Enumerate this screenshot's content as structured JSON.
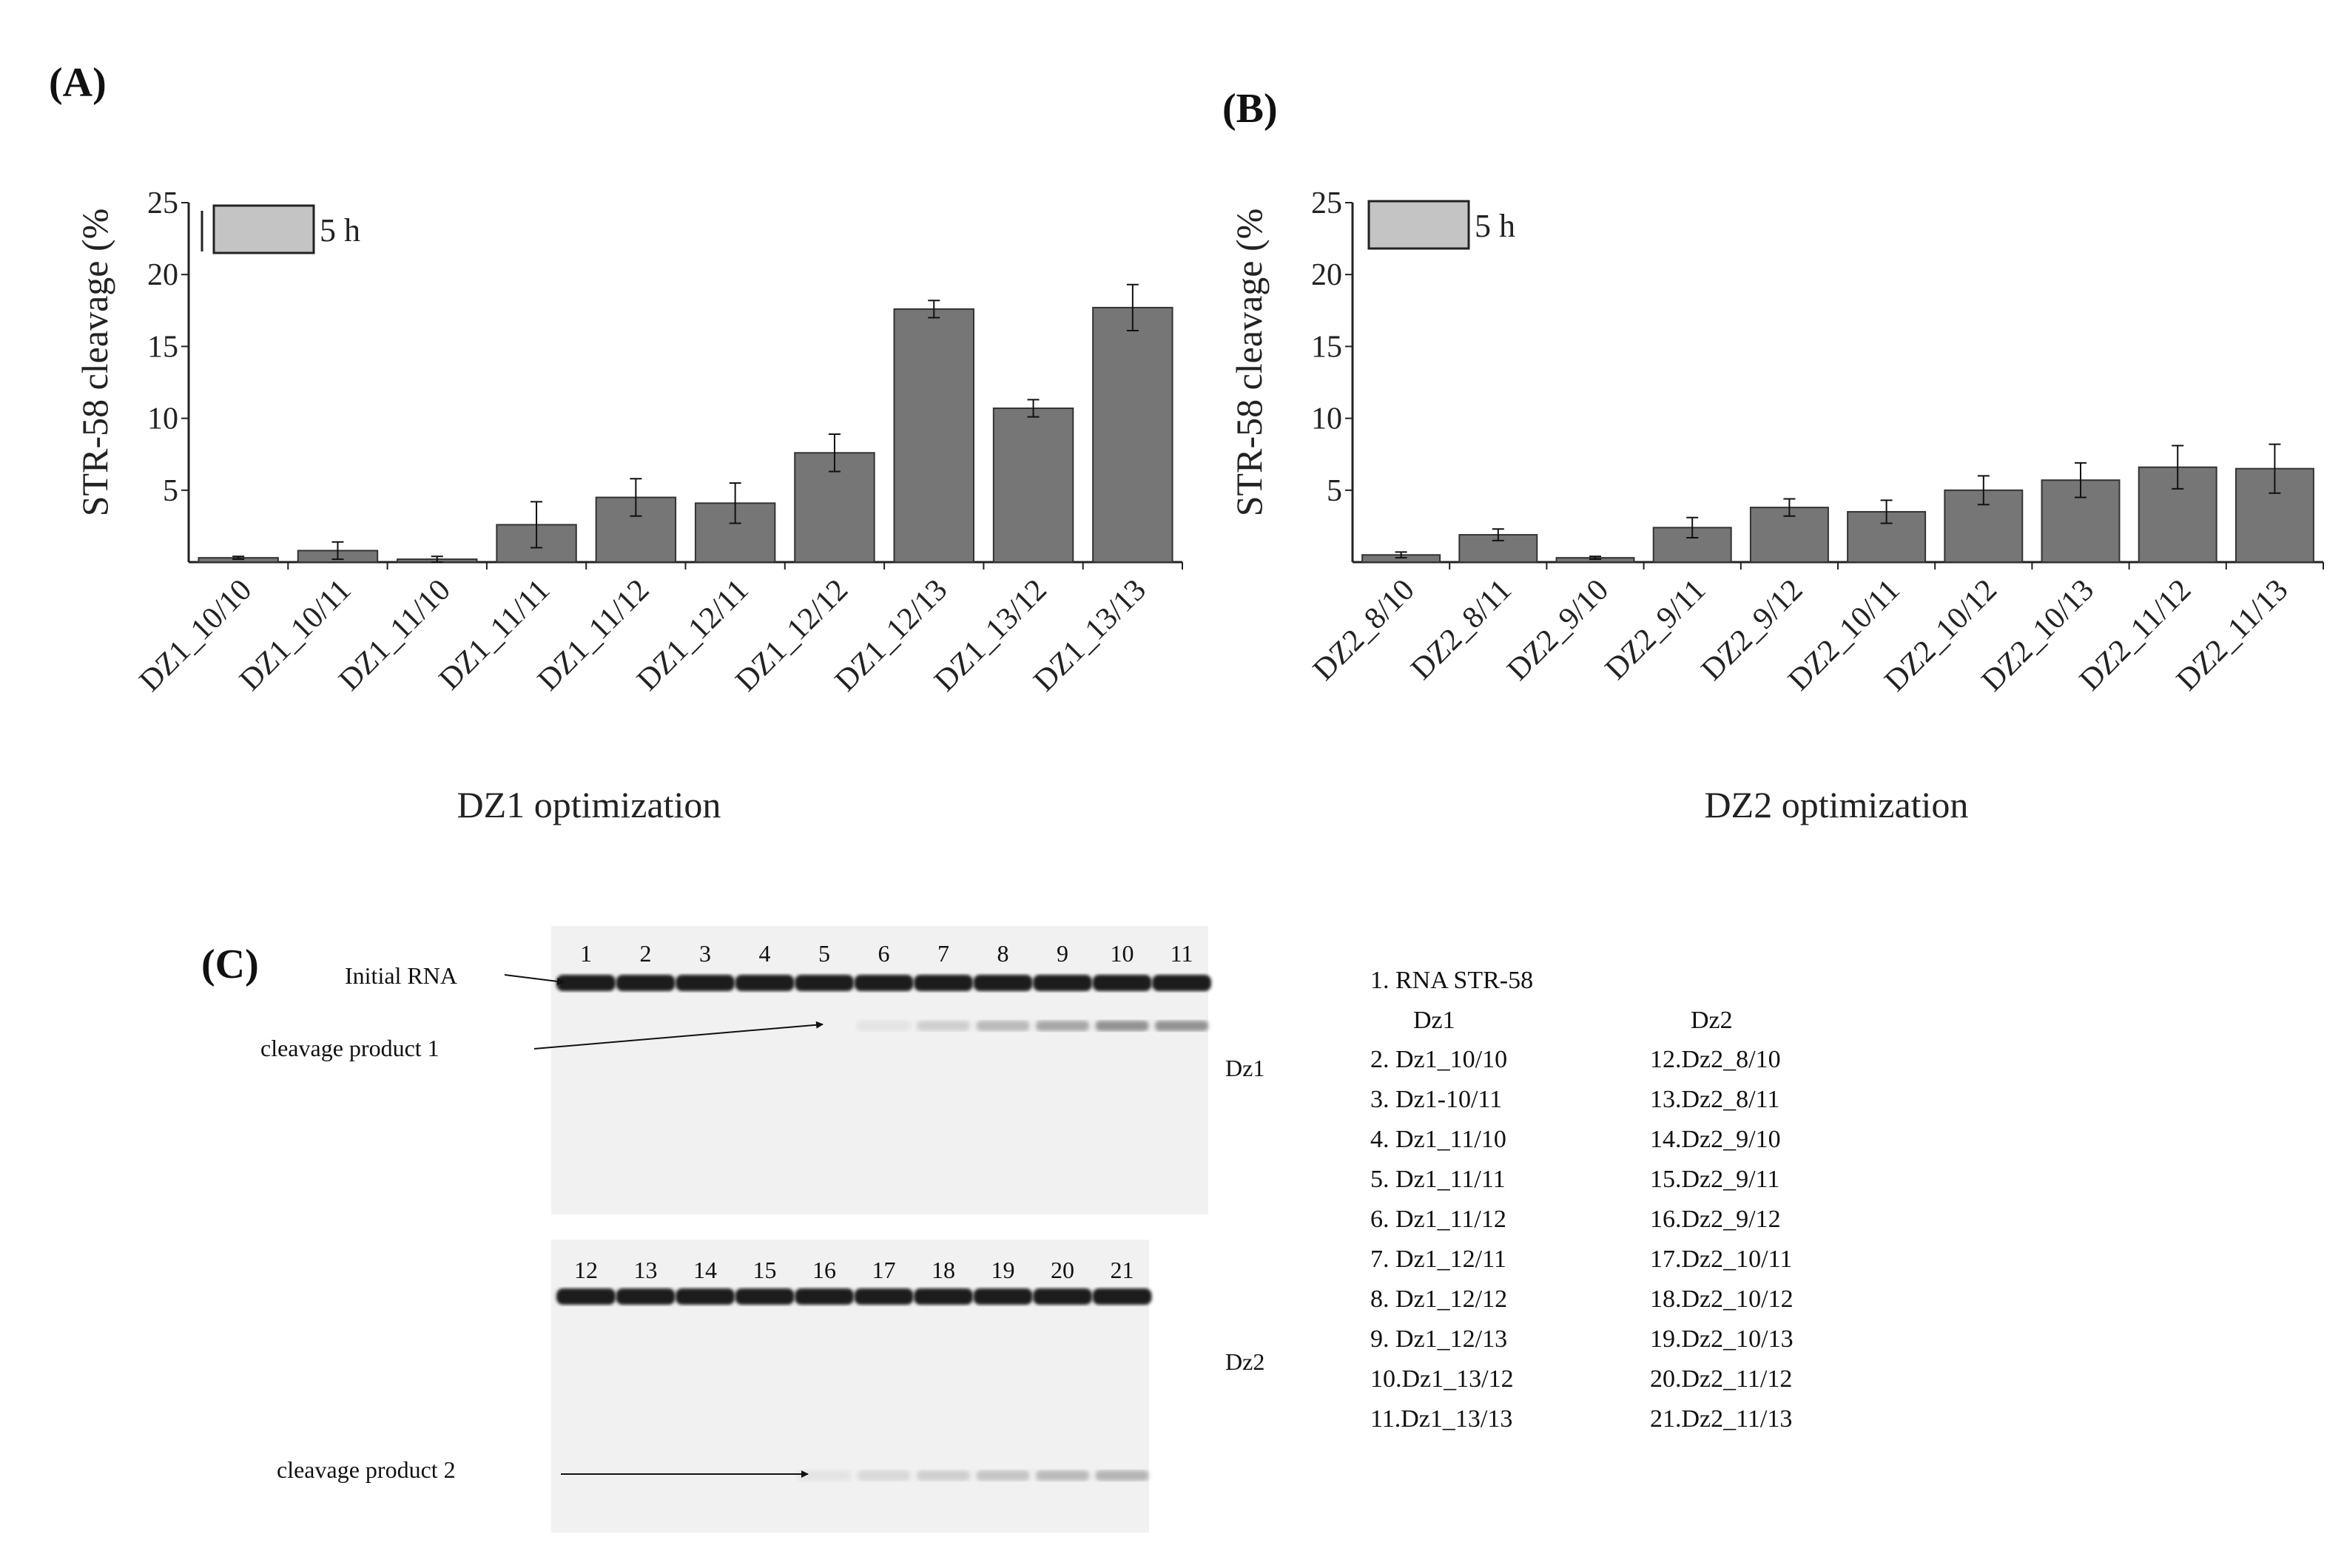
{
  "chart_data": [
    {
      "panel": "(A)",
      "type": "bar",
      "ylabel": "STR-58 cleavage (%",
      "xlabel": "DZ1 optimization",
      "ylim": [
        0,
        25
      ],
      "yticks": [
        "5",
        "10",
        "15",
        "20",
        "25"
      ],
      "legend": {
        "label": "5 h",
        "color": "#c4c4c4"
      },
      "bar_color": "#767676",
      "categories": [
        "DZ1_10/10",
        "DZ1_10/11",
        "DZ1_11/10",
        "DZ1_11/11",
        "DZ1_11/12",
        "DZ1_12/11",
        "DZ1_12/12",
        "DZ1_12/13",
        "DZ1_13/12",
        "DZ1_13/13"
      ],
      "values": [
        0.3,
        0.8,
        0.2,
        2.6,
        4.5,
        4.1,
        7.6,
        17.6,
        10.7,
        17.7
      ],
      "errors": [
        0.1,
        0.6,
        0.2,
        1.6,
        1.3,
        1.4,
        1.3,
        0.6,
        0.6,
        1.6
      ]
    },
    {
      "panel": "(B)",
      "type": "bar",
      "ylabel": "STR-58 cleavage (%",
      "xlabel": "DZ2 optimization",
      "ylim": [
        0,
        25
      ],
      "yticks": [
        "5",
        "10",
        "15",
        "20",
        "25"
      ],
      "legend": {
        "label": "5 h",
        "color": "#c4c4c4"
      },
      "bar_color": "#767676",
      "categories": [
        "DZ2_8/10",
        "DZ2_8/11",
        "DZ2_9/10",
        "DZ2_9/11",
        "DZ2_9/12",
        "DZ2_10/11",
        "DZ2_10/12",
        "DZ2_10/13",
        "DZ2_11/12",
        "DZ2_11/13"
      ],
      "values": [
        0.5,
        1.9,
        0.3,
        2.4,
        3.8,
        3.5,
        5.0,
        5.7,
        6.6,
        6.5
      ],
      "errors": [
        0.2,
        0.4,
        0.1,
        0.7,
        0.6,
        0.8,
        1.0,
        1.2,
        1.5,
        1.7
      ]
    }
  ],
  "gel": {
    "panel": "(C)",
    "top_lanes": [
      "1",
      "2",
      "3",
      "4",
      "5",
      "6",
      "7",
      "8",
      "9",
      "10",
      "11"
    ],
    "bottom_lanes": [
      "12",
      "13",
      "14",
      "15",
      "16",
      "17",
      "18",
      "19",
      "20",
      "21"
    ],
    "annotations": {
      "initial_rna": "Initial  RNA",
      "product1": "cleavage  product 1",
      "product2": "cleavage  product 2",
      "dz1": "Dz1",
      "dz2": "Dz2"
    }
  },
  "key": {
    "item1": "1.  RNA STR-58",
    "head_dz1": "Dz1",
    "head_dz2": "Dz2",
    "left": [
      "2.  Dz1_10/10",
      "3.  Dz1-10/11",
      "4.  Dz1_11/10",
      "5.  Dz1_11/11",
      "6.  Dz1_11/12",
      "7.  Dz1_12/11",
      "8.  Dz1_12/12",
      "9.  Dz1_12/13",
      "10.Dz1_13/12",
      "11.Dz1_13/13"
    ],
    "right": [
      "12.Dz2_8/10",
      "13.Dz2_8/11",
      "14.Dz2_9/10",
      "15.Dz2_9/11",
      "16.Dz2_9/12",
      "17.Dz2_10/11",
      "18.Dz2_10/12",
      "19.Dz2_10/13",
      "20.Dz2_11/12",
      "21.Dz2_11/13"
    ]
  }
}
